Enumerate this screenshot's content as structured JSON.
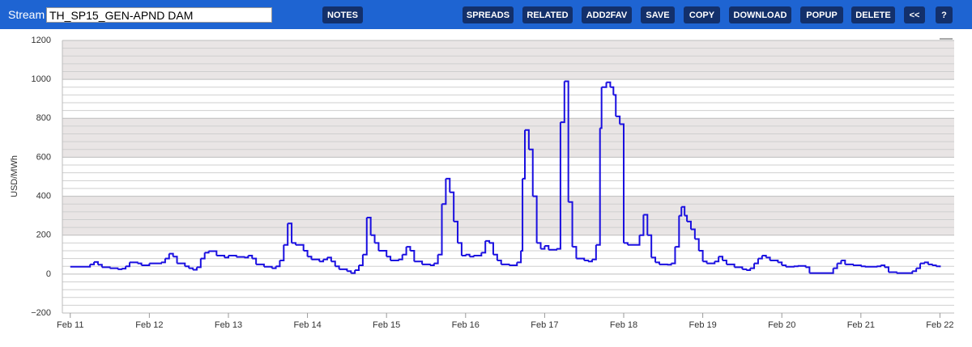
{
  "toolbar": {
    "stream_label": "Stream",
    "stream_value": "TH_SP15_GEN-APND DAM",
    "buttons": [
      "NOTES",
      "SPREADS",
      "RELATED",
      "ADD2FAV",
      "SAVE",
      "COPY",
      "DOWNLOAD",
      "POPUP",
      "DELETE",
      "<<",
      "?"
    ]
  },
  "chart_data": {
    "type": "step-line",
    "y_label": "USD/MWh",
    "x": [
      11.0,
      11.25,
      11.3,
      11.35,
      11.4,
      11.5,
      11.6,
      11.65,
      11.7,
      11.75,
      11.85,
      11.9,
      12.0,
      12.15,
      12.2,
      12.25,
      12.3,
      12.35,
      12.45,
      12.5,
      12.55,
      12.6,
      12.65,
      12.7,
      12.75,
      12.85,
      12.95,
      13.0,
      13.1,
      13.2,
      13.25,
      13.3,
      13.35,
      13.45,
      13.55,
      13.6,
      13.65,
      13.7,
      13.75,
      13.8,
      13.85,
      13.95,
      14.0,
      14.05,
      14.15,
      14.2,
      14.25,
      14.3,
      14.35,
      14.4,
      14.5,
      14.55,
      14.6,
      14.65,
      14.7,
      14.75,
      14.8,
      14.85,
      14.9,
      15.0,
      15.05,
      15.15,
      15.2,
      15.25,
      15.3,
      15.35,
      15.45,
      15.55,
      15.6,
      15.65,
      15.7,
      15.75,
      15.8,
      15.85,
      15.9,
      15.95,
      16.0,
      16.05,
      16.1,
      16.2,
      16.25,
      16.3,
      16.35,
      16.4,
      16.45,
      16.55,
      16.65,
      16.7,
      16.72,
      16.75,
      16.8,
      16.85,
      16.9,
      16.95,
      17.0,
      17.05,
      17.15,
      17.2,
      17.25,
      17.3,
      17.35,
      17.4,
      17.5,
      17.55,
      17.6,
      17.65,
      17.7,
      17.72,
      17.78,
      17.83,
      17.87,
      17.9,
      17.95,
      18.0,
      18.05,
      18.15,
      18.2,
      18.25,
      18.3,
      18.35,
      18.4,
      18.45,
      18.55,
      18.6,
      18.65,
      18.7,
      18.73,
      18.77,
      18.8,
      18.85,
      18.9,
      18.95,
      19.0,
      19.05,
      19.15,
      19.2,
      19.25,
      19.3,
      19.4,
      19.5,
      19.55,
      19.6,
      19.65,
      19.7,
      19.75,
      19.8,
      19.85,
      19.95,
      20.0,
      20.05,
      20.15,
      20.2,
      20.3,
      20.35,
      20.5,
      20.6,
      20.65,
      20.7,
      20.75,
      20.8,
      20.9,
      21.0,
      21.05,
      21.15,
      21.2,
      21.25,
      21.3,
      21.35,
      21.45,
      21.55,
      21.65,
      21.7,
      21.75,
      21.8,
      21.85,
      21.9,
      21.95,
      22.0
    ],
    "series": [
      {
        "name": "TH_SP15_GEN-APND DAM",
        "color": "#1a0fe0",
        "values": [
          38,
          50,
          62,
          48,
          35,
          30,
          25,
          28,
          40,
          60,
          55,
          45,
          55,
          60,
          80,
          105,
          90,
          55,
          40,
          30,
          22,
          35,
          80,
          110,
          118,
          95,
          85,
          95,
          88,
          85,
          95,
          80,
          50,
          38,
          30,
          40,
          70,
          150,
          260,
          160,
          150,
          120,
          90,
          75,
          65,
          75,
          85,
          65,
          40,
          25,
          15,
          5,
          20,
          45,
          100,
          290,
          200,
          160,
          120,
          90,
          70,
          75,
          100,
          140,
          120,
          65,
          50,
          45,
          55,
          100,
          360,
          490,
          420,
          270,
          160,
          95,
          100,
          90,
          95,
          110,
          170,
          160,
          100,
          70,
          50,
          45,
          60,
          120,
          490,
          740,
          640,
          400,
          160,
          130,
          145,
          125,
          130,
          780,
          990,
          370,
          140,
          80,
          70,
          65,
          75,
          150,
          750,
          960,
          985,
          960,
          920,
          810,
          770,
          160,
          150,
          150,
          200,
          305,
          200,
          85,
          60,
          50,
          48,
          55,
          140,
          300,
          345,
          300,
          270,
          230,
          180,
          120,
          65,
          55,
          65,
          90,
          70,
          50,
          35,
          25,
          20,
          30,
          55,
          80,
          95,
          85,
          70,
          60,
          45,
          38,
          40,
          42,
          35,
          5,
          5,
          5,
          30,
          55,
          70,
          50,
          45,
          40,
          38,
          38,
          40,
          45,
          35,
          10,
          5,
          5,
          15,
          30,
          55,
          60,
          50,
          45,
          40,
          35
        ]
      }
    ],
    "xlim": [
      10.9,
      22.18
    ],
    "xticks": [
      {
        "value": 11,
        "label": "Feb 11"
      },
      {
        "value": 12,
        "label": "Feb 12"
      },
      {
        "value": 13,
        "label": "Feb 13"
      },
      {
        "value": 14,
        "label": "Feb 14"
      },
      {
        "value": 15,
        "label": "Feb 15"
      },
      {
        "value": 16,
        "label": "Feb 16"
      },
      {
        "value": 17,
        "label": "Feb 17"
      },
      {
        "value": 18,
        "label": "Feb 18"
      },
      {
        "value": 19,
        "label": "Feb 19"
      },
      {
        "value": 20,
        "label": "Feb 20"
      },
      {
        "value": 21,
        "label": "Feb 21"
      },
      {
        "value": 22,
        "label": "Feb 22"
      }
    ],
    "ylim": [
      -200,
      1200
    ],
    "yticks": [
      {
        "value": -200,
        "label": "−200"
      },
      0,
      200,
      400,
      600,
      800,
      1000,
      1200
    ],
    "shaded_bands": [
      [
        1000,
        1200
      ],
      [
        600,
        800
      ],
      [
        200,
        400
      ]
    ],
    "grid": true
  }
}
